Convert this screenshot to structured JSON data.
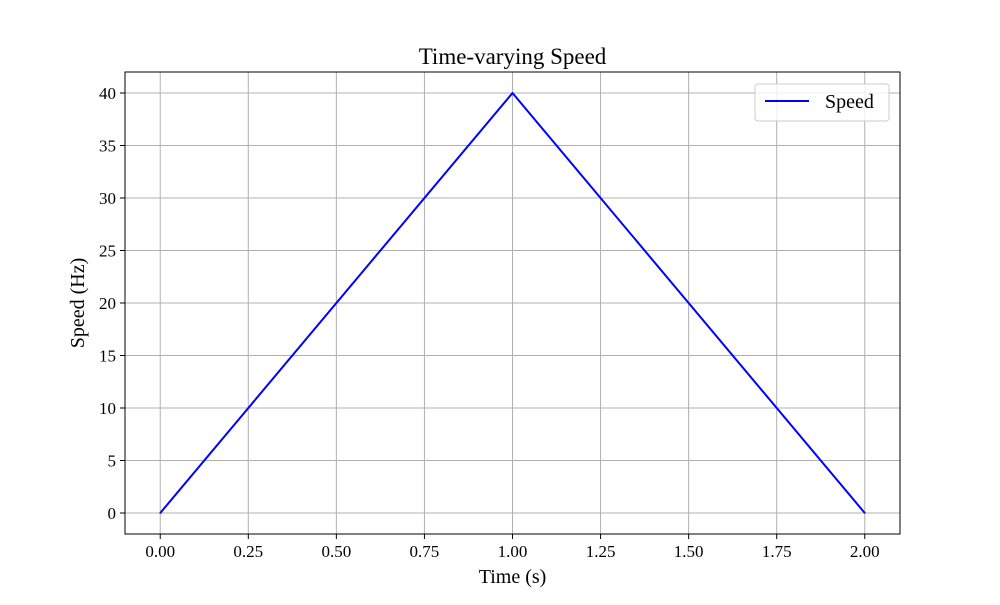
{
  "chart_data": {
    "type": "line",
    "title": "Time-varying Speed",
    "xlabel": "Time (s)",
    "ylabel": "Speed (Hz)",
    "xlim": [
      -0.1,
      2.1
    ],
    "ylim": [
      -2,
      42
    ],
    "xticks": [
      0.0,
      0.25,
      0.5,
      0.75,
      1.0,
      1.25,
      1.5,
      1.75,
      2.0
    ],
    "xtick_labels": [
      "0.00",
      "0.25",
      "0.50",
      "0.75",
      "1.00",
      "1.25",
      "1.50",
      "1.75",
      "2.00"
    ],
    "yticks": [
      0,
      5,
      10,
      15,
      20,
      25,
      30,
      35,
      40
    ],
    "ytick_labels": [
      "0",
      "5",
      "10",
      "15",
      "20",
      "25",
      "30",
      "35",
      "40"
    ],
    "grid": true,
    "legend_position": "top-right",
    "series": [
      {
        "name": "Speed",
        "color": "#0000ff",
        "x": [
          0.0,
          1.0,
          2.0
        ],
        "y": [
          0,
          40,
          0
        ]
      }
    ]
  }
}
